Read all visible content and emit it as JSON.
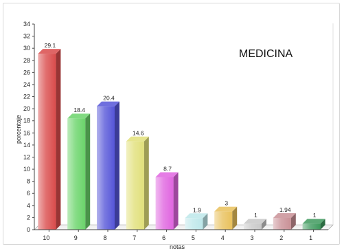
{
  "chart_data": {
    "type": "bar",
    "title": "MEDICINA",
    "xlabel": "notas",
    "ylabel": "porcentaje",
    "categories": [
      "10",
      "9",
      "8",
      "7",
      "6",
      "5",
      "4",
      "3",
      "2",
      "1"
    ],
    "values": [
      29.1,
      18.4,
      20.4,
      14.6,
      8.7,
      1.9,
      3,
      1,
      1.94,
      1
    ],
    "value_labels": [
      "29.1",
      "18.4",
      "20.4",
      "14.6",
      "8.7",
      "1.9",
      "3",
      "1",
      "1.94",
      "1"
    ],
    "ylim": [
      0,
      34
    ],
    "yticks": [
      0,
      2,
      4,
      6,
      8,
      10,
      12,
      14,
      16,
      18,
      20,
      22,
      24,
      26,
      28,
      30,
      32,
      34
    ],
    "grid": false,
    "legend": false,
    "style": "3d-bars",
    "colors": [
      "#d94b4b",
      "#6ad46a",
      "#5656d8",
      "#e1e07a",
      "#e065e0",
      "#bde7ea",
      "#e9c15c",
      "#c8c8c8",
      "#c99096",
      "#3f9a5e"
    ]
  }
}
